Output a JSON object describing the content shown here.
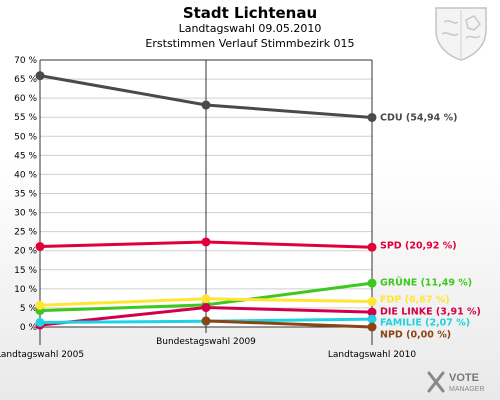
{
  "header": {
    "title": "Stadt Lichtenau",
    "subtitle": "Landtagswahl 09.05.2010",
    "subtitle2": "Erststimmen Verlauf Stimmbezirk 015"
  },
  "logo": {
    "text_top": "VOTE",
    "text_bottom": "MANAGER"
  },
  "chart_data": {
    "type": "line",
    "title": "Stadt Lichtenau",
    "x": [
      "Landtagswahl 2005",
      "Bundestagswahl 2009",
      "Landtagswahl 2010"
    ],
    "ylim": [
      0,
      70
    ],
    "ytick_step": 5,
    "ytick_format": "{v} %",
    "grid": true,
    "series": [
      {
        "name": "CDU",
        "label": "CDU (54,94 %)",
        "color": "#4a4a4a",
        "values": [
          65.9,
          58.2,
          54.94
        ]
      },
      {
        "name": "SPD",
        "label": "SPD (20,92 %)",
        "color": "#e2003a",
        "values": [
          21.1,
          22.3,
          20.92
        ]
      },
      {
        "name": "GRÜNE",
        "label": "GRÜNE (11,49 %)",
        "color": "#3cc81e",
        "values": [
          4.3,
          5.8,
          11.49
        ]
      },
      {
        "name": "FDP",
        "label": "FDP (6,67 %)",
        "color": "#ffe632",
        "values": [
          5.7,
          7.4,
          6.67
        ]
      },
      {
        "name": "DIE LINKE",
        "label": "DIE LINKE (3,91 %)",
        "color": "#d2004b",
        "values": [
          0.5,
          5.1,
          3.91
        ]
      },
      {
        "name": "FAMILIE",
        "label": "FAMILIE (2,07 %)",
        "color": "#1ed2e6",
        "values": [
          1.2,
          1.5,
          2.07
        ]
      },
      {
        "name": "NPD",
        "label": "NPD (0,00 %)",
        "color": "#8b4513",
        "values": [
          null,
          1.6,
          0.0
        ]
      }
    ]
  }
}
